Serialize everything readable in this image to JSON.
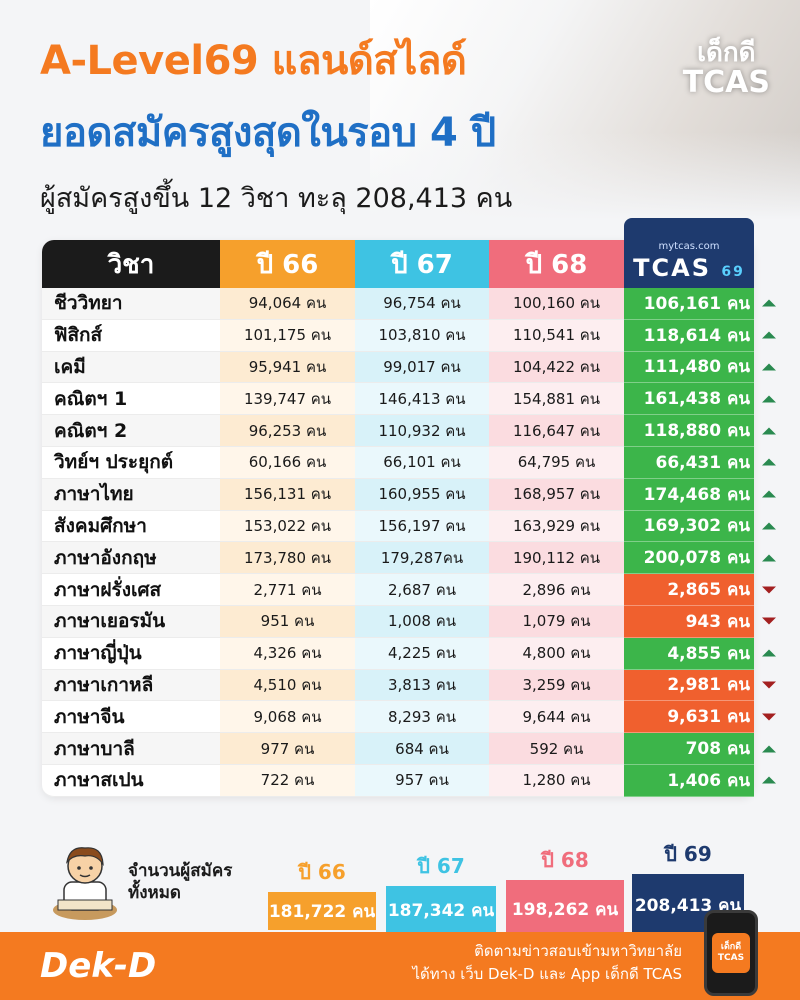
{
  "header": {
    "title_line1": "A-Level69 แลนด์สไลด์",
    "title_line2": "ยอดสมัครสูงสุดในรอบ 4 ปี",
    "subtitle": "ผู้สมัครสูงขึ้น 12 วิชา ทะลุ 208,413 คน"
  },
  "brand_logo": {
    "line1": "เด็กดี",
    "line2": "TCAS"
  },
  "table": {
    "headers": [
      "วิชา",
      "ปี 66",
      "ปี 67",
      "ปี 68"
    ],
    "tcas_header": {
      "small": "mytcas.com",
      "big": "TCAS",
      "sup": "69"
    },
    "rows": [
      {
        "subject": "ชีววิทยา",
        "y66": "94,064 คน",
        "y67": "96,754 คน",
        "y68": "100,160 คน",
        "y69": "106,161 คน",
        "trend": "up"
      },
      {
        "subject": "ฟิสิกส์",
        "y66": "101,175 คน",
        "y67": "103,810 คน",
        "y68": "110,541 คน",
        "y69": "118,614 คน",
        "trend": "up"
      },
      {
        "subject": "เคมี",
        "y66": "95,941 คน",
        "y67": "99,017 คน",
        "y68": "104,422 คน",
        "y69": "111,480 คน",
        "trend": "up"
      },
      {
        "subject": "คณิตฯ 1",
        "y66": "139,747 คน",
        "y67": "146,413 คน",
        "y68": "154,881 คน",
        "y69": "161,438 คน",
        "trend": "up"
      },
      {
        "subject": "คณิตฯ 2",
        "y66": "96,253 คน",
        "y67": "110,932 คน",
        "y68": "116,647 คน",
        "y69": "118,880 คน",
        "trend": "up"
      },
      {
        "subject": "วิทย์ฯ ประยุกต์",
        "y66": "60,166 คน",
        "y67": "66,101 คน",
        "y68": "64,795 คน",
        "y69": "66,431 คน",
        "trend": "up"
      },
      {
        "subject": "ภาษาไทย",
        "y66": "156,131 คน",
        "y67": "160,955 คน",
        "y68": "168,957 คน",
        "y69": "174,468 คน",
        "trend": "up"
      },
      {
        "subject": "สังคมศึกษา",
        "y66": "153,022 คน",
        "y67": "156,197 คน",
        "y68": "163,929 คน",
        "y69": "169,302 คน",
        "trend": "up"
      },
      {
        "subject": "ภาษาอังกฤษ",
        "y66": "173,780 คน",
        "y67": "179,287คน",
        "y68": "190,112 คน",
        "y69": "200,078 คน",
        "trend": "up"
      },
      {
        "subject": "ภาษาฝรั่งเศส",
        "y66": "2,771 คน",
        "y67": "2,687 คน",
        "y68": "2,896 คน",
        "y69": "2,865 คน",
        "trend": "down"
      },
      {
        "subject": "ภาษาเยอรมัน",
        "y66": "951 คน",
        "y67": "1,008 คน",
        "y68": "1,079 คน",
        "y69": "943 คน",
        "trend": "down"
      },
      {
        "subject": "ภาษาญี่ปุ่น",
        "y66": "4,326 คน",
        "y67": "4,225 คน",
        "y68": "4,800 คน",
        "y69": "4,855 คน",
        "trend": "up"
      },
      {
        "subject": "ภาษาเกาหลี",
        "y66": "4,510 คน",
        "y67": "3,813 คน",
        "y68": "3,259 คน",
        "y69": "2,981 คน",
        "trend": "down"
      },
      {
        "subject": "ภาษาจีน",
        "y66": "9,068 คน",
        "y67": "8,293 คน",
        "y68": "9,644 คน",
        "y69": "9,631 คน",
        "trend": "down"
      },
      {
        "subject": "ภาษาบาลี",
        "y66": "977 คน",
        "y67": "684 คน",
        "y68": "592 คน",
        "y69": "708 คน",
        "trend": "up"
      },
      {
        "subject": "ภาษาสเปน",
        "y66": "722 คน",
        "y67": "957 คน",
        "y68": "1,280 คน",
        "y69": "1,406 คน",
        "trend": "up"
      }
    ]
  },
  "totals": {
    "label_line1": "จำนวนผู้สมัคร",
    "label_line2": "ทั้งหมด",
    "items": [
      {
        "year": "ปี 66",
        "value": "181,722 คน"
      },
      {
        "year": "ปี 67",
        "value": "187,342 คน"
      },
      {
        "year": "ปี 68",
        "value": "198,262 คน"
      },
      {
        "year": "ปี 69",
        "value": "208,413 คน"
      }
    ]
  },
  "footer": {
    "brand": "Dek-D",
    "follow_line1": "ติดตามข่าวสอบเข้ามหาวิทยาลัย",
    "follow_line2": "ได้ทาง เว็บ Dek-D และ App เด็กดี TCAS",
    "phone_line1": "เด็กดี",
    "phone_line2": "TCAS"
  },
  "colors": {
    "orange": "#f47a20",
    "blue_title": "#1f6fc5",
    "y66": "#f6a02c",
    "y67": "#3ec3e3",
    "y68": "#f06d7c",
    "y69": "#1e3a6e",
    "up": "#3cb54a",
    "down": "#f0602e"
  }
}
